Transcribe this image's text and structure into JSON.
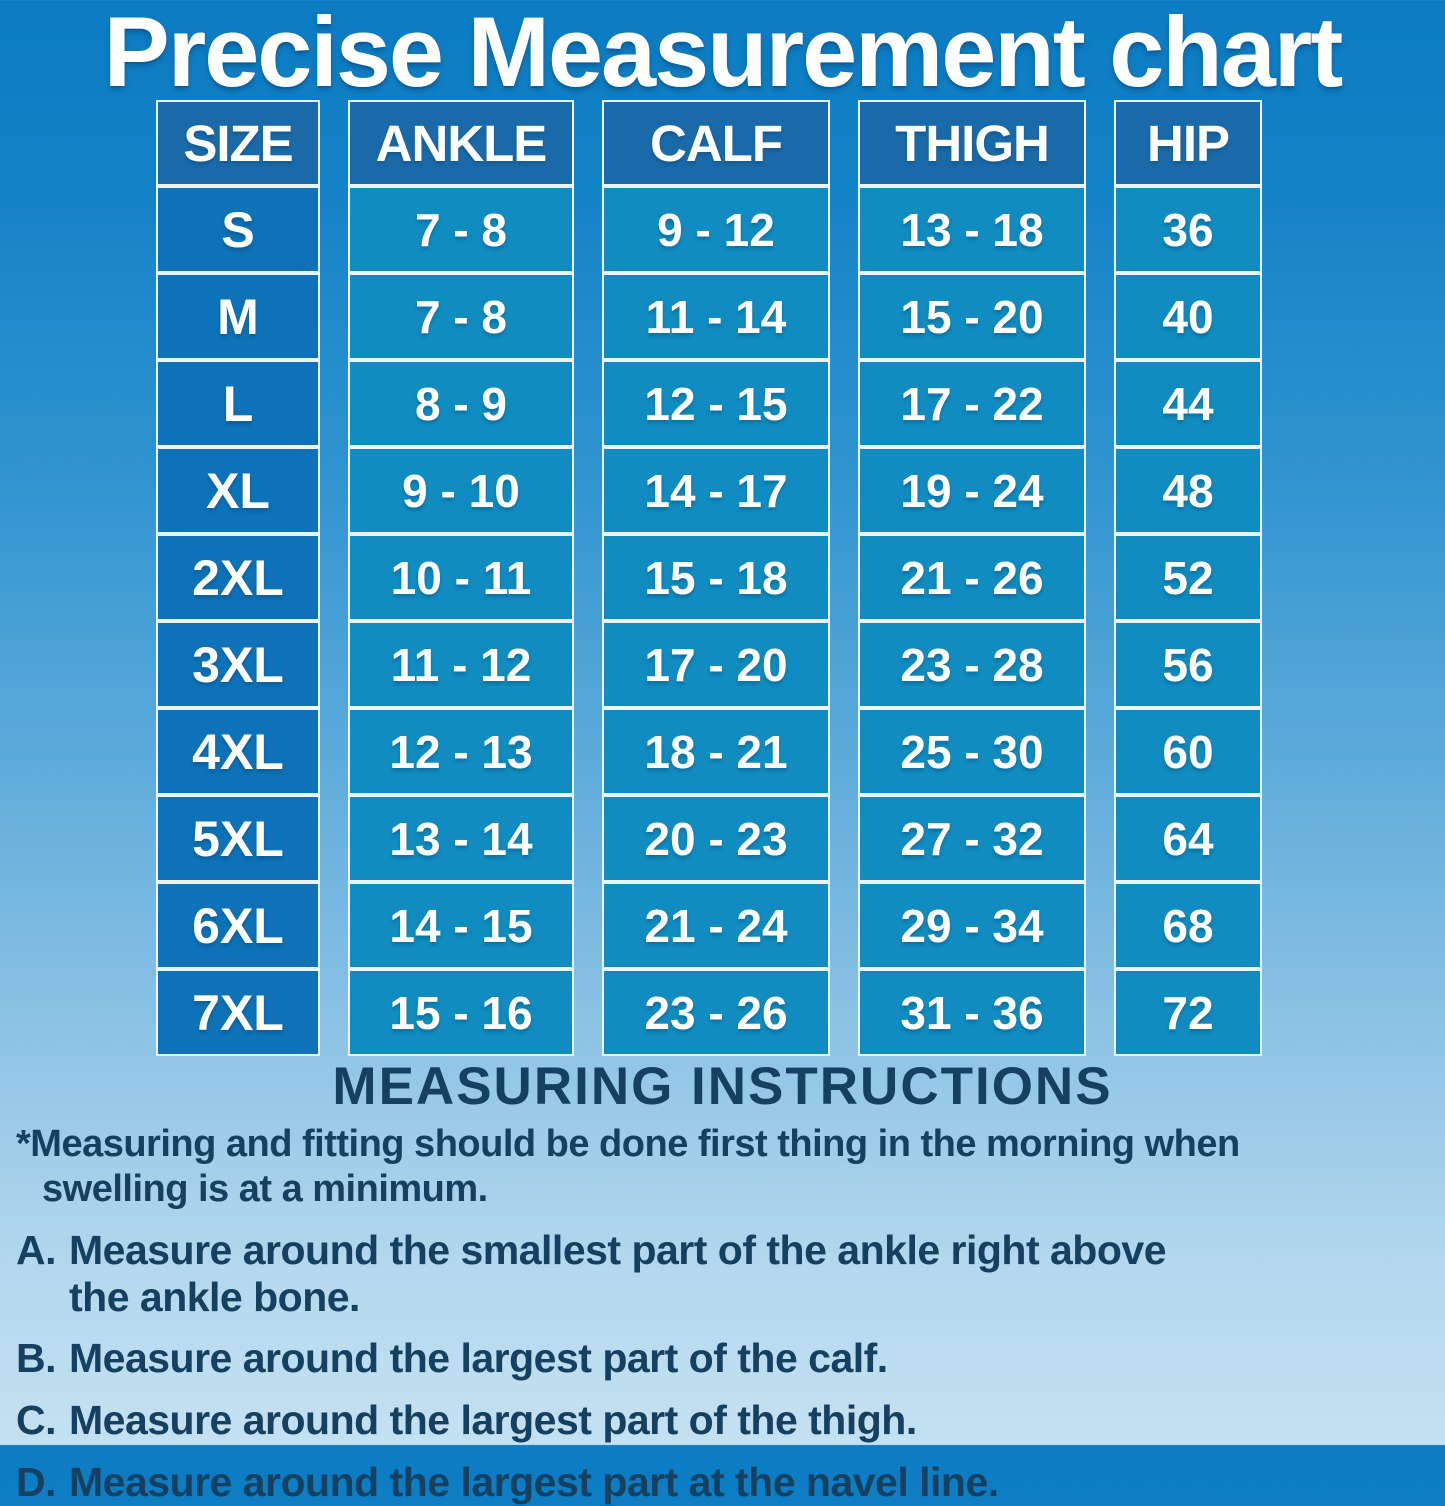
{
  "title": "Precise Measurement chart",
  "chart_data": {
    "type": "table",
    "title": "Precise Measurement chart",
    "columns": [
      "SIZE",
      "ANKLE",
      "CALF",
      "THIGH",
      "HIP"
    ],
    "rows": [
      [
        "S",
        "7 - 8",
        "9 - 12",
        "13 - 18",
        "36"
      ],
      [
        "M",
        "7 - 8",
        "11 - 14",
        "15 - 20",
        "40"
      ],
      [
        "L",
        "8 - 9",
        "12 - 15",
        "17 - 22",
        "44"
      ],
      [
        "XL",
        "9 - 10",
        "14 - 17",
        "19 - 24",
        "48"
      ],
      [
        "2XL",
        "10 - 11",
        "15 - 18",
        "21 - 26",
        "52"
      ],
      [
        "3XL",
        "11 - 12",
        "17 - 20",
        "23 - 28",
        "56"
      ],
      [
        "4XL",
        "12 - 13",
        "18 - 21",
        "25 - 30",
        "60"
      ],
      [
        "5XL",
        "13 - 14",
        "20 - 23",
        "27 - 32",
        "64"
      ],
      [
        "6XL",
        "14 - 15",
        "21 - 24",
        "29 - 34",
        "68"
      ],
      [
        "7XL",
        "15 - 16",
        "23 - 26",
        "31 - 36",
        "72"
      ]
    ]
  },
  "instructions": {
    "heading": "MEASURING INSTRUCTIONS",
    "note": "*Measuring and fitting should be done first thing in the morning when\nswelling is at a minimum.",
    "items": [
      {
        "label": "A.",
        "text": "Measure around the smallest part of the ankle right above\nthe ankle bone."
      },
      {
        "label": "B.",
        "text": "Measure around the largest part of the calf."
      },
      {
        "label": "C.",
        "text": "Measure around the largest part of the thigh."
      },
      {
        "label": "D.",
        "text": "Measure around the largest part at the navel line."
      }
    ]
  },
  "colors": {
    "background_top": "#0b7cc3",
    "background_bottom": "#c4e1f2",
    "header_cell": "#1a6aa9",
    "size_cell": "#0d72b7",
    "data_cell": "#108cc0",
    "cell_border": "#eaf4fb",
    "table_text": "#ffffff",
    "instructions_text": "#16405f"
  }
}
